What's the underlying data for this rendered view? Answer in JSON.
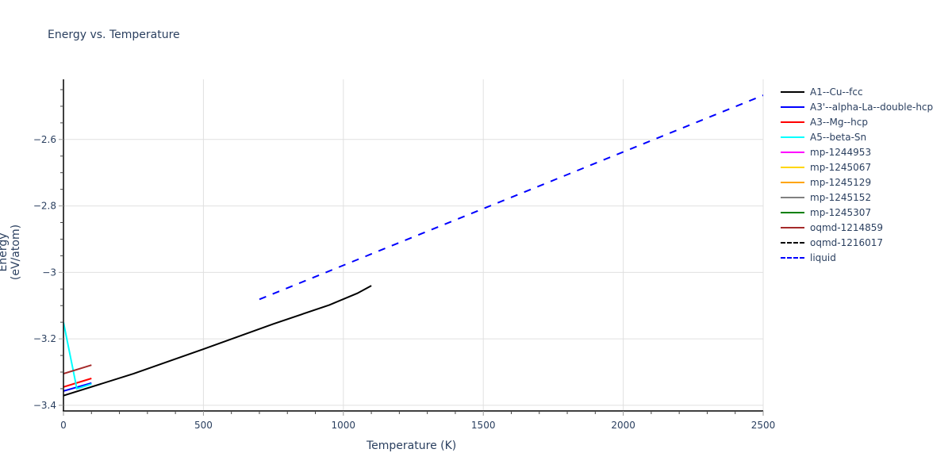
{
  "chart_data": {
    "type": "line",
    "title": "Energy vs. Temperature",
    "xlabel": "Temperature (K)",
    "ylabel": "Energy (eV/atom)",
    "xlim": [
      0,
      2500
    ],
    "ylim": [
      -3.417,
      -2.419
    ],
    "xticks": [
      0,
      500,
      1000,
      1500,
      2000,
      2500
    ],
    "xtick_labels": [
      "0",
      "500",
      "1000",
      "1500",
      "2000",
      "2500"
    ],
    "yticks": [
      -3.4,
      -3.2,
      -3.0,
      -2.8,
      -2.6
    ],
    "ytick_labels": [
      "−3.4",
      "−3.2",
      "−3",
      "−2.8",
      "−2.6"
    ],
    "grid": true,
    "legend_position": "right",
    "series": [
      {
        "name": "A1--Cu--fcc",
        "color": "#000000",
        "dash": false,
        "x": [
          0,
          250,
          500,
          750,
          950,
          1050,
          1100
        ],
        "y": [
          -3.371,
          -3.305,
          -3.231,
          -3.155,
          -3.098,
          -3.063,
          -3.04
        ]
      },
      {
        "name": "A3'--alpha-La--double-hcp",
        "color": "#0000ff",
        "dash": false,
        "x": [
          0,
          100
        ],
        "y": [
          -3.357,
          -3.333
        ]
      },
      {
        "name": "A3--Mg--hcp",
        "color": "#ff0000",
        "dash": false,
        "x": [
          0,
          100
        ],
        "y": [
          -3.345,
          -3.319
        ]
      },
      {
        "name": "A5--beta-Sn",
        "color": "#00ffff",
        "dash": false,
        "x": [
          0,
          48,
          100
        ],
        "y": [
          -3.15,
          -3.35,
          -3.336
        ]
      },
      {
        "name": "mp-1244953",
        "color": "#ff00ff",
        "dash": false,
        "x": [],
        "y": []
      },
      {
        "name": "mp-1245067",
        "color": "#ffd700",
        "dash": false,
        "x": [],
        "y": []
      },
      {
        "name": "mp-1245129",
        "color": "#ffa500",
        "dash": false,
        "x": [],
        "y": []
      },
      {
        "name": "mp-1245152",
        "color": "#808080",
        "dash": false,
        "x": [],
        "y": []
      },
      {
        "name": "mp-1245307",
        "color": "#008000",
        "dash": false,
        "x": [],
        "y": []
      },
      {
        "name": "oqmd-1214859",
        "color": "#a52a2a",
        "dash": false,
        "x": [
          0,
          100
        ],
        "y": [
          -3.305,
          -3.279
        ]
      },
      {
        "name": "oqmd-1216017",
        "color": "#000000",
        "dash": true,
        "x": [],
        "y": []
      },
      {
        "name": "liquid",
        "color": "#0000ff",
        "dash": true,
        "x": [
          700,
          2500
        ],
        "y": [
          -3.081,
          -2.467
        ]
      }
    ]
  }
}
